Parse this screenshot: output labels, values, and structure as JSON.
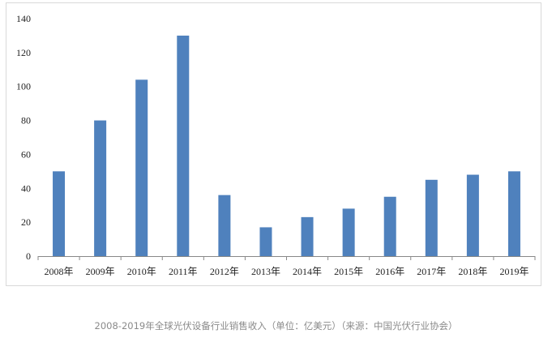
{
  "chart_data": {
    "type": "bar",
    "categories": [
      "2008年",
      "2009年",
      "2010年",
      "2011年",
      "2012年",
      "2013年",
      "2014年",
      "2015年",
      "2016年",
      "2017年",
      "2018年",
      "2019年"
    ],
    "values": [
      50,
      80,
      104,
      130,
      36,
      17,
      23,
      28,
      35,
      45,
      48,
      50
    ],
    "ylim": [
      0,
      140
    ],
    "yticks": [
      "0",
      "20",
      "40",
      "60",
      "80",
      "100",
      "120",
      "140"
    ],
    "grid": false,
    "legend": "none",
    "colors": {
      "bar": "#4f81bd",
      "axis": "#888888",
      "text": "#222222"
    }
  },
  "caption": "2008-2019年全球光伏设备行业销售收入（单位：亿美元）（来源：中国光伏行业协会）"
}
